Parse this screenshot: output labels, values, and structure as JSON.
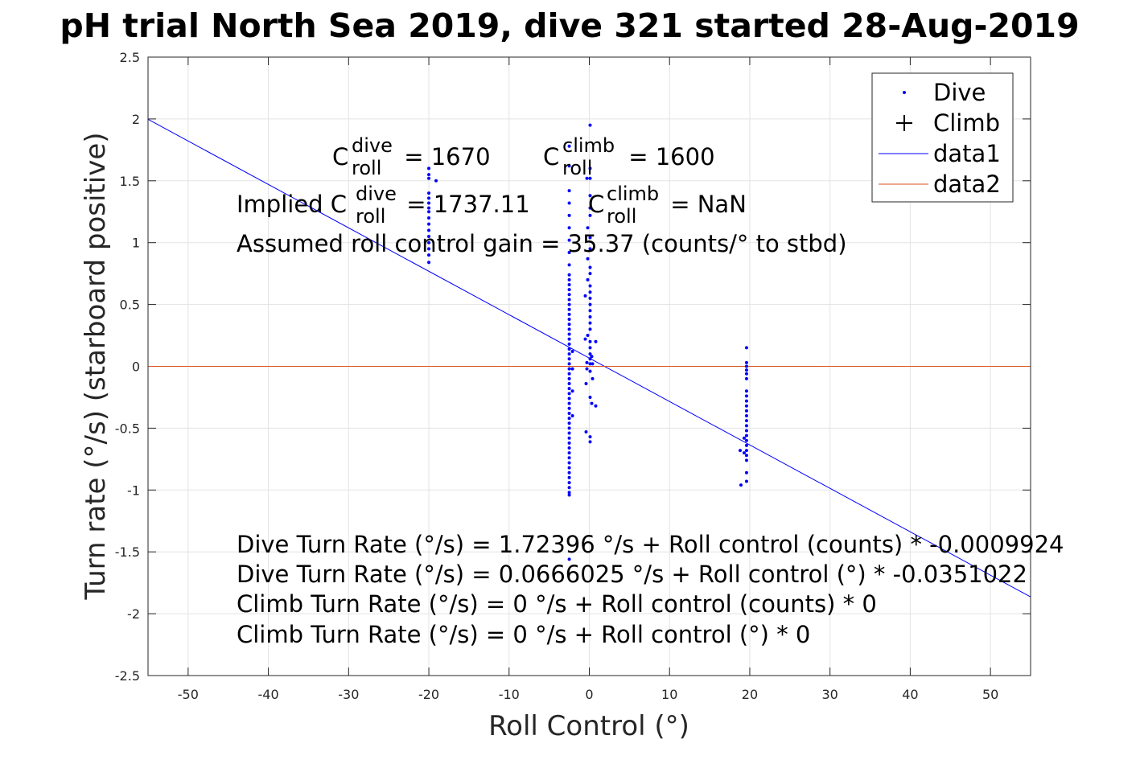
{
  "chart_data": {
    "type": "scatter",
    "title": "pH trial North Sea 2019, dive 321 started 28-Aug-2019",
    "xlabel": "Roll Control (°)",
    "ylabel": "Turn rate (°/s) (starboard positive)",
    "xlim": [
      -55,
      55
    ],
    "ylim": [
      -2.5,
      2.5
    ],
    "xticks": [
      -50,
      -40,
      -30,
      -20,
      -10,
      0,
      10,
      20,
      30,
      40,
      50
    ],
    "yticks": [
      -2.5,
      -2,
      -1.5,
      -1,
      -0.5,
      0,
      0.5,
      1,
      1.5,
      2,
      2.5
    ],
    "grid": true,
    "legend_position": "top-right",
    "legend": [
      {
        "label": "Dive",
        "marker": "dot",
        "color": "#0000ff"
      },
      {
        "label": "Climb",
        "marker": "plus",
        "color": "#000000"
      },
      {
        "label": "data1",
        "marker": "line",
        "color": "#0000ff"
      },
      {
        "label": "data2",
        "marker": "line",
        "color": "#d95319"
      }
    ],
    "series": [
      {
        "name": "Dive",
        "color": "#0000ff",
        "points": [
          [
            -20,
            0.84
          ],
          [
            -20,
            0.9
          ],
          [
            -20,
            0.95
          ],
          [
            -20,
            1.0
          ],
          [
            -20,
            1.05
          ],
          [
            -20,
            1.1
          ],
          [
            -20,
            1.15
          ],
          [
            -20,
            1.2
          ],
          [
            -20,
            1.25
          ],
          [
            -20,
            1.28
          ],
          [
            -20,
            1.32
          ],
          [
            -20,
            1.36
          ],
          [
            -20,
            1.4
          ],
          [
            -20,
            1.52
          ],
          [
            -20,
            1.55
          ],
          [
            -20,
            1.6
          ],
          [
            -19.1,
            1.5
          ],
          [
            -2.5,
            1.78
          ],
          [
            -2.5,
            1.62
          ],
          [
            -2.5,
            1.42
          ],
          [
            -2.5,
            1.32
          ],
          [
            -2.5,
            1.22
          ],
          [
            -2.5,
            1.12
          ],
          [
            -2.5,
            1.02
          ],
          [
            -2.5,
            0.92
          ],
          [
            -2.5,
            0.82
          ],
          [
            -2.5,
            0.74
          ],
          [
            -2.5,
            0.7
          ],
          [
            -2.5,
            0.66
          ],
          [
            -2.5,
            0.62
          ],
          [
            -2.5,
            0.58
          ],
          [
            -2.5,
            0.54
          ],
          [
            -2.5,
            0.5
          ],
          [
            -2.5,
            0.46
          ],
          [
            -2.5,
            0.42
          ],
          [
            -2.5,
            0.38
          ],
          [
            -2.5,
            0.34
          ],
          [
            -2.5,
            0.3
          ],
          [
            -2.5,
            0.26
          ],
          [
            -2.5,
            0.22
          ],
          [
            -2.5,
            0.18
          ],
          [
            -2.5,
            0.14
          ],
          [
            -2.5,
            0.1
          ],
          [
            -2.5,
            0.06
          ],
          [
            -2.5,
            0.02
          ],
          [
            -2.5,
            -0.02
          ],
          [
            -2.5,
            -0.06
          ],
          [
            -2.5,
            -0.1
          ],
          [
            -2.5,
            -0.14
          ],
          [
            -2.5,
            -0.18
          ],
          [
            -2.5,
            -0.22
          ],
          [
            -2.5,
            -0.26
          ],
          [
            -2.5,
            -0.3
          ],
          [
            -2.5,
            -0.34
          ],
          [
            -2.5,
            -0.38
          ],
          [
            -2.5,
            -0.42
          ],
          [
            -2.5,
            -0.46
          ],
          [
            -2.5,
            -0.5
          ],
          [
            -2.5,
            -0.54
          ],
          [
            -2.5,
            -0.58
          ],
          [
            -2.5,
            -0.62
          ],
          [
            -2.5,
            -0.66
          ],
          [
            -2.5,
            -0.7
          ],
          [
            -2.5,
            -0.74
          ],
          [
            -2.5,
            -0.78
          ],
          [
            -2.5,
            -0.82
          ],
          [
            -2.5,
            -0.86
          ],
          [
            -2.5,
            -0.9
          ],
          [
            -2.5,
            -0.94
          ],
          [
            -2.5,
            -0.98
          ],
          [
            -2.5,
            -1.02
          ],
          [
            -2.5,
            -1.04
          ],
          [
            -2.5,
            -1.56
          ],
          [
            -2.1,
            0.12
          ],
          [
            -2.1,
            -0.02
          ],
          [
            -2.1,
            -0.2
          ],
          [
            -2.1,
            -0.4
          ],
          [
            0.1,
            1.95
          ],
          [
            0.1,
            1.6
          ],
          [
            0.1,
            1.52
          ],
          [
            -0.3,
            1.52
          ],
          [
            0.1,
            1.38
          ],
          [
            0.1,
            1.28
          ],
          [
            0.1,
            1.22
          ],
          [
            -0.2,
            1.12
          ],
          [
            0.1,
            1.04
          ],
          [
            0.1,
            0.95
          ],
          [
            -0.2,
            0.87
          ],
          [
            0.1,
            0.8
          ],
          [
            0.1,
            0.75
          ],
          [
            -0.2,
            0.7
          ],
          [
            0.1,
            0.65
          ],
          [
            0.1,
            0.6
          ],
          [
            -0.5,
            0.57
          ],
          [
            0.1,
            0.55
          ],
          [
            0.1,
            0.5
          ],
          [
            0.1,
            0.45
          ],
          [
            0.1,
            0.4
          ],
          [
            0.1,
            0.35
          ],
          [
            0.1,
            0.3
          ],
          [
            -0.2,
            0.25
          ],
          [
            0.1,
            0.2
          ],
          [
            0.1,
            0.15
          ],
          [
            0.1,
            0.1
          ],
          [
            0.1,
            0.06
          ],
          [
            -0.5,
            0.22
          ],
          [
            -0.3,
            0.03
          ],
          [
            0.1,
            0.02
          ],
          [
            -0.3,
            -0.02
          ],
          [
            0.1,
            -0.04
          ],
          [
            -0.4,
            -0.14
          ],
          [
            0.4,
            -0.1
          ],
          [
            0.3,
            0.08
          ],
          [
            0.4,
            0.02
          ],
          [
            0.8,
            0.2
          ],
          [
            0.3,
            -0.3
          ],
          [
            0.8,
            -0.32
          ],
          [
            -0.4,
            -0.53
          ],
          [
            0.1,
            -0.57
          ],
          [
            0.1,
            -0.61
          ],
          [
            0.1,
            -0.25
          ],
          [
            19.6,
            0.15
          ],
          [
            19.6,
            0.03
          ],
          [
            19.6,
            0.0
          ],
          [
            19.6,
            -0.03
          ],
          [
            19.6,
            -0.06
          ],
          [
            19.6,
            -0.1
          ],
          [
            19.6,
            -0.2
          ],
          [
            19.6,
            -0.24
          ],
          [
            19.6,
            -0.28
          ],
          [
            19.6,
            -0.32
          ],
          [
            19.6,
            -0.36
          ],
          [
            19.6,
            -0.4
          ],
          [
            19.6,
            -0.44
          ],
          [
            19.6,
            -0.48
          ],
          [
            19.6,
            -0.52
          ],
          [
            19.6,
            -0.56
          ],
          [
            19.6,
            -0.6
          ],
          [
            19.6,
            -0.64
          ],
          [
            19.6,
            -0.68
          ],
          [
            19.6,
            -0.72
          ],
          [
            19.6,
            -0.76
          ],
          [
            19.6,
            -0.86
          ],
          [
            19.6,
            -0.93
          ],
          [
            19.3,
            -0.58
          ],
          [
            19.3,
            -0.7
          ],
          [
            18.8,
            -0.68
          ],
          [
            18.9,
            -0.96
          ]
        ]
      },
      {
        "name": "data1",
        "type": "line",
        "color": "#0000ff",
        "x": [
          -55,
          55
        ],
        "y": [
          1.997,
          -1.864
        ]
      },
      {
        "name": "data2",
        "type": "line",
        "color": "#d95319",
        "x": [
          -55,
          55
        ],
        "y": [
          0,
          0
        ]
      }
    ],
    "annotations": {
      "c_dive_main": "C",
      "c_dive_sup": "dive",
      "c_dive_sub": "roll",
      "c_dive_value": " = 1670",
      "c_climb_main": "C",
      "c_climb_sup": "climb",
      "c_climb_sub": "roll",
      "c_climb_value": " = 1600",
      "implied_prefix": "Implied C",
      "implied_dive_sup": "dive",
      "implied_dive_sub": "roll",
      "implied_dive_value": " = 1737.11",
      "implied_climb_main": "C",
      "implied_climb_sup": "climb",
      "implied_climb_sub": "roll",
      "implied_climb_value": " = NaN",
      "gain": "Assumed roll control gain = 35.37 (counts/° to stbd)",
      "eq1": "Dive Turn Rate (°/s) = 1.72396 °/s + Roll control (counts) * -0.0009924",
      "eq2": "Dive Turn Rate (°/s) = 0.0666025 °/s + Roll control (°) * -0.0351022",
      "eq3": "Climb Turn Rate (°/s) = 0 °/s + Roll control (counts) * 0",
      "eq4": "Climb Turn Rate (°/s) = 0 °/s + Roll control (°) * 0"
    }
  }
}
